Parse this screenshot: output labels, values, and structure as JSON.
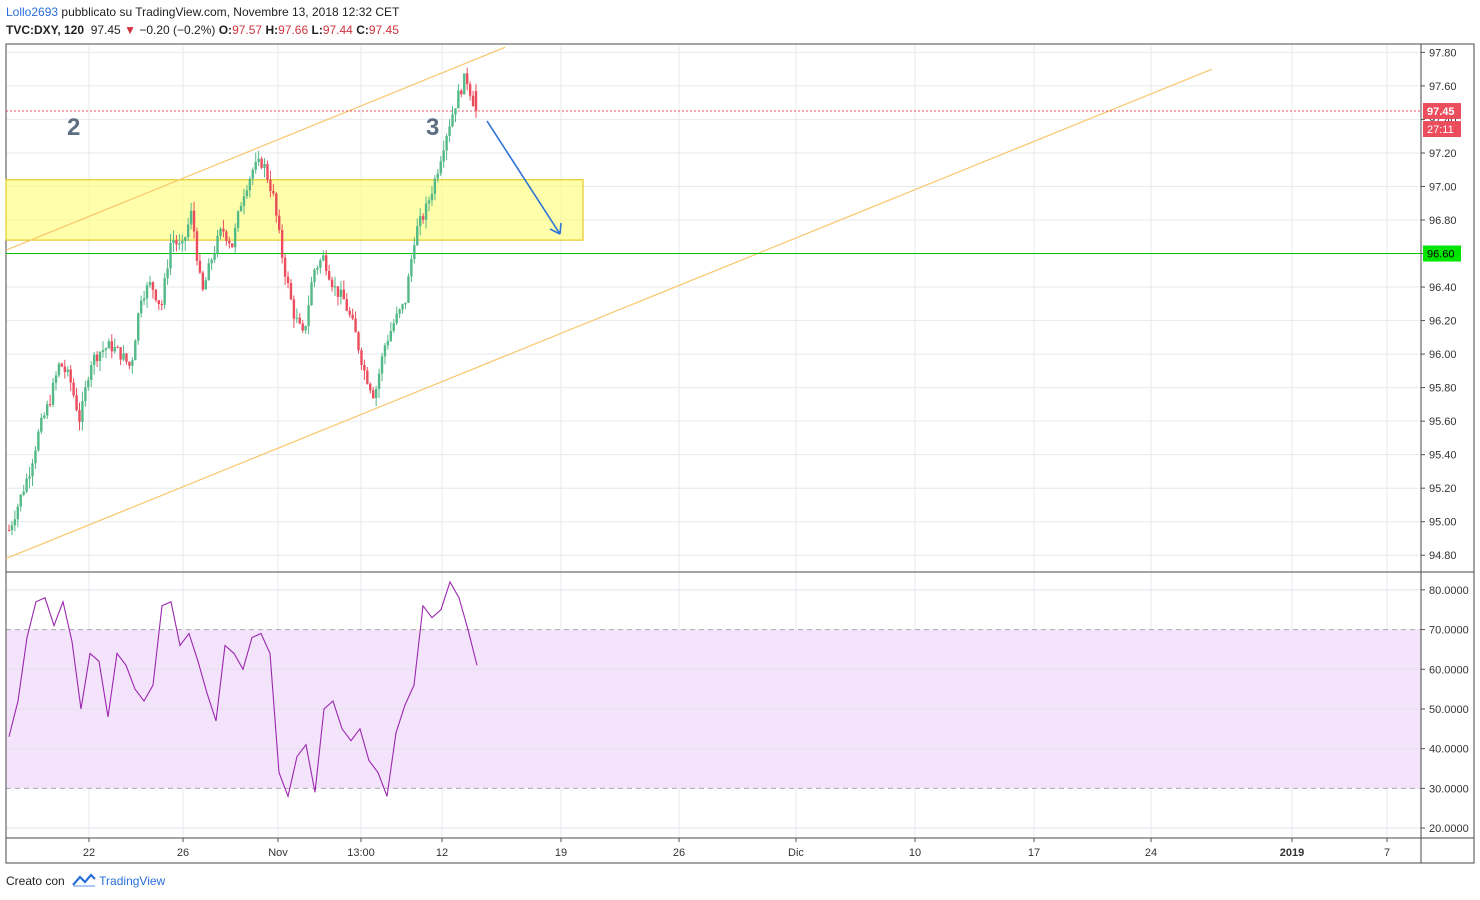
{
  "header": {
    "author": "Lollo2693",
    "published": " pubblicato su TradingView.com, Novembre 13, 2018 12:32 CET",
    "symbol": "TVC:DXY, 120",
    "last": "97.45",
    "arrow": "▼",
    "change": "−0.20 (−0.2%)",
    "o_label": "O:",
    "o": "97.57",
    "h_label": "H:",
    "h": "97.66",
    "l_label": "L:",
    "l": "97.44",
    "c_label": "C:",
    "c": "97.45"
  },
  "footer": {
    "created": "Creato con",
    "brand": "TradingView"
  },
  "colors": {
    "up": "#53b987",
    "down": "#eb4d5c",
    "rsi": "#9c27b0",
    "rsi_band": "#f3e3fb",
    "channel": "#f9c66b",
    "zone": "#ffff66",
    "support": "#00c800",
    "arrow": "#2e74d6"
  },
  "chart_data": [
    {
      "type": "candlestick",
      "symbol": "TVC:DXY",
      "interval": "120",
      "ylim": [
        94.7,
        97.85
      ],
      "y_ticks": [
        "97.80",
        "97.60",
        "97.40",
        "97.20",
        "97.00",
        "96.80",
        "96.60",
        "96.40",
        "96.20",
        "96.00",
        "95.80",
        "95.60",
        "95.40",
        "95.20",
        "95.00",
        "94.80"
      ],
      "x_ticks": [
        "22",
        "26",
        "Nov",
        "13:00",
        "12",
        "19",
        "26",
        "Dic",
        "10",
        "17",
        "24",
        "2019",
        "7"
      ],
      "last_price": {
        "label": "97.45",
        "value": 97.45
      },
      "countdown": "27:11",
      "support_level": {
        "label": "96.60",
        "value": 96.6
      },
      "zone": {
        "from": 96.68,
        "to": 97.04
      },
      "annotations": [
        "2",
        "3"
      ],
      "grid": true,
      "trend_path": [
        94.95,
        95.12,
        95.3,
        95.55,
        95.72,
        95.95,
        95.85,
        95.6,
        95.95,
        96.02,
        96.05,
        96.0,
        95.92,
        96.35,
        96.42,
        96.28,
        96.7,
        96.62,
        96.85,
        96.35,
        96.58,
        96.75,
        96.65,
        96.95,
        97.1,
        97.15,
        96.95,
        96.55,
        96.25,
        96.1,
        96.5,
        96.58,
        96.4,
        96.32,
        96.15,
        95.9,
        95.75,
        96.05,
        96.2,
        96.3,
        96.72,
        96.85,
        97.05,
        97.3,
        97.5,
        97.66,
        97.45
      ]
    },
    {
      "type": "line",
      "indicator": "RSI",
      "ylim": [
        18,
        84
      ],
      "y_ticks": [
        "80.0000",
        "70.0000",
        "60.0000",
        "50.0000",
        "40.0000",
        "30.0000",
        "20.0000"
      ],
      "band": [
        30,
        70
      ],
      "values": [
        43,
        52,
        68,
        77,
        78,
        71,
        77,
        67,
        50,
        64,
        62,
        48,
        64,
        61,
        55,
        52,
        56,
        76,
        77,
        66,
        69,
        62,
        54,
        47,
        66,
        64,
        60,
        68,
        69,
        64,
        34,
        28,
        38,
        41,
        29,
        50,
        52,
        45,
        42,
        45,
        37,
        34,
        28,
        44,
        51,
        56,
        76,
        73,
        75,
        82,
        78,
        70,
        61
      ]
    }
  ]
}
